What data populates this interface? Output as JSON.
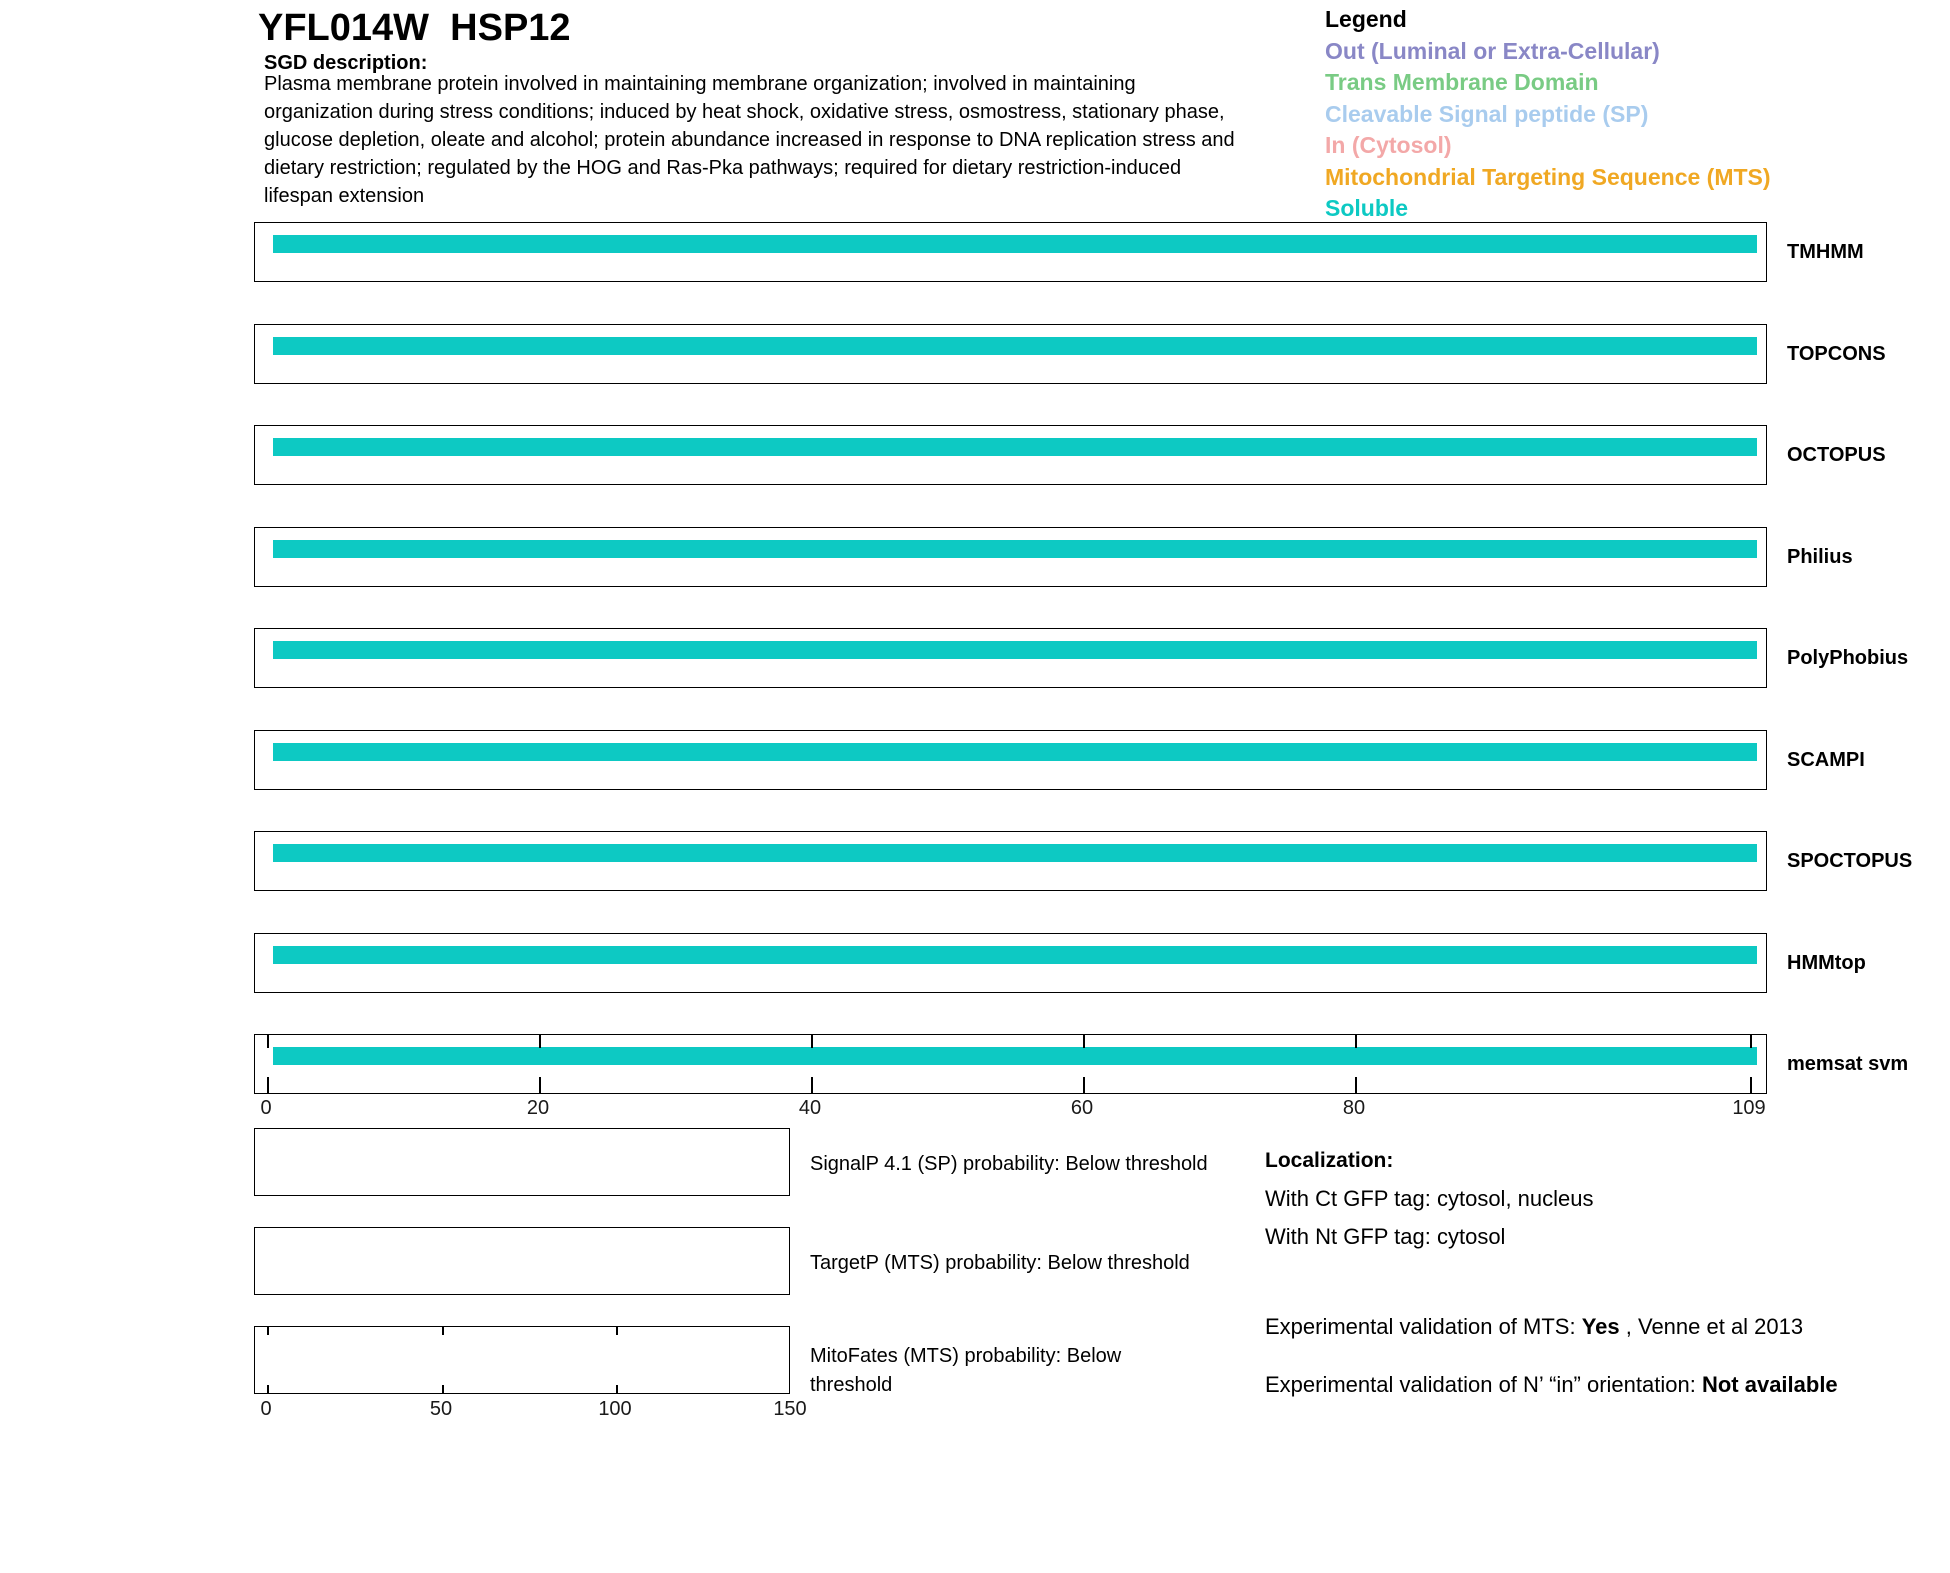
{
  "header": {
    "title": "YFL014W  HSP12",
    "sgd_label": "SGD description:",
    "description": "Plasma membrane protein involved in maintaining membrane organization; involved in maintaining\norganization during stress conditions; induced by heat shock, oxidative stress, osmostress, stationary phase,\nglucose depletion, oleate and alcohol; protein abundance increased in response to DNA replication stress and\ndietary restriction; regulated by the HOG and Ras-Pka pathways; required for dietary restriction-induced\nlifespan extension"
  },
  "legend": {
    "title": "Legend",
    "items": [
      {
        "id": "out",
        "label": "Out (Luminal or Extra-Cellular)",
        "color": "#8987C6"
      },
      {
        "id": "tm",
        "label": "Trans Membrane Domain",
        "color": "#79CB84"
      },
      {
        "id": "sp",
        "label": "Cleavable Signal peptide (SP)",
        "color": "#A9CCEE"
      },
      {
        "id": "in",
        "label": "In (Cytosol)",
        "color": "#F3A8A8"
      },
      {
        "id": "mts",
        "label": "Mitochondrial Targeting Sequence (MTS)",
        "color": "#F0A823"
      },
      {
        "id": "soluble",
        "label": "Soluble",
        "color": "#0DC9C3"
      }
    ]
  },
  "chart_data": {
    "type": "bar",
    "subtype": "protein-topology-span-tracks",
    "protein_length": 109,
    "soluble_color": "#0DC9C3",
    "x_axis": {
      "range": [
        0,
        109
      ],
      "ticks": [
        0,
        20,
        40,
        60,
        80,
        109
      ]
    },
    "tracks": [
      {
        "label": "TMHMM",
        "segments": [
          {
            "start": 1,
            "end": 109,
            "class": "Soluble"
          }
        ]
      },
      {
        "label": "TOPCONS",
        "segments": [
          {
            "start": 1,
            "end": 109,
            "class": "Soluble"
          }
        ]
      },
      {
        "label": "OCTOPUS",
        "segments": [
          {
            "start": 1,
            "end": 109,
            "class": "Soluble"
          }
        ]
      },
      {
        "label": "Philius",
        "segments": [
          {
            "start": 1,
            "end": 109,
            "class": "Soluble"
          }
        ]
      },
      {
        "label": "PolyPhobius",
        "segments": [
          {
            "start": 1,
            "end": 109,
            "class": "Soluble"
          }
        ]
      },
      {
        "label": "SCAMPI",
        "segments": [
          {
            "start": 1,
            "end": 109,
            "class": "Soluble"
          }
        ]
      },
      {
        "label": "SPOCTOPUS",
        "segments": [
          {
            "start": 1,
            "end": 109,
            "class": "Soluble"
          }
        ]
      },
      {
        "label": "HMMtop",
        "segments": [
          {
            "start": 1,
            "end": 109,
            "class": "Soluble"
          }
        ]
      },
      {
        "label": "memsat svm",
        "segments": [
          {
            "start": 1,
            "end": 109,
            "class": "Soluble"
          }
        ],
        "axis_tick_marks": [
          0,
          20,
          40,
          60,
          80,
          109
        ]
      }
    ],
    "probability_panels": {
      "x_axis": {
        "range": [
          0,
          150
        ],
        "ticks": [
          0,
          50,
          100,
          150
        ]
      },
      "panels": [
        {
          "label": "SignalP 4.1 (SP) probability: Below threshold",
          "curve": "none"
        },
        {
          "label": "TargetP (MTS) probability: Below threshold",
          "curve": "none"
        },
        {
          "label": "MitoFates (MTS) probability: Below\nthreshold",
          "curve": "none",
          "axis_tick_marks": [
            0,
            50,
            100
          ]
        }
      ]
    }
  },
  "localization": {
    "heading": "Localization:",
    "ct_line": "With Ct GFP tag: cytosol, nucleus",
    "nt_line": "With Nt GFP tag: cytosol",
    "mts_validation": {
      "prefix": "Experimental validation of MTS: ",
      "value": "Yes",
      "suffix": " , Venne et al 2013"
    },
    "nterm_validation": {
      "prefix": "Experimental validation of N’ “in” orientation: ",
      "value": "Not available"
    }
  }
}
